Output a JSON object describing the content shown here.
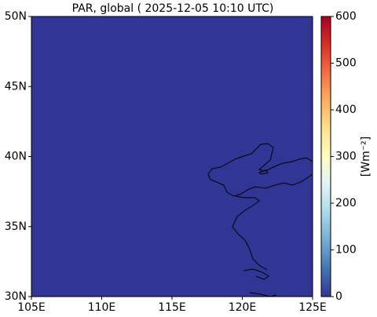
{
  "chart_data": {
    "type": "map",
    "title": "PAR, global ( 2025-12-05 10:10 UTC)",
    "xlim": [
      105,
      125
    ],
    "xticks": [
      {
        "value": 105,
        "label": "105E"
      },
      {
        "value": 110,
        "label": "110E"
      },
      {
        "value": 115,
        "label": "115E"
      },
      {
        "value": 120,
        "label": "120E"
      },
      {
        "value": 125,
        "label": "125E"
      }
    ],
    "ylim": [
      30,
      50
    ],
    "yticks": [
      {
        "value": 30,
        "label": "30N"
      },
      {
        "value": 35,
        "label": "35N"
      },
      {
        "value": 40,
        "label": "40N"
      },
      {
        "value": 45,
        "label": "45N"
      },
      {
        "value": 50,
        "label": "50N"
      }
    ],
    "field_value": 0,
    "colormap": "RdYlBu_r",
    "colorbar": {
      "label": "[Wm⁻²]",
      "lim": [
        0,
        600
      ],
      "ticks": [
        0,
        100,
        200,
        300,
        400,
        500,
        600
      ]
    }
  }
}
